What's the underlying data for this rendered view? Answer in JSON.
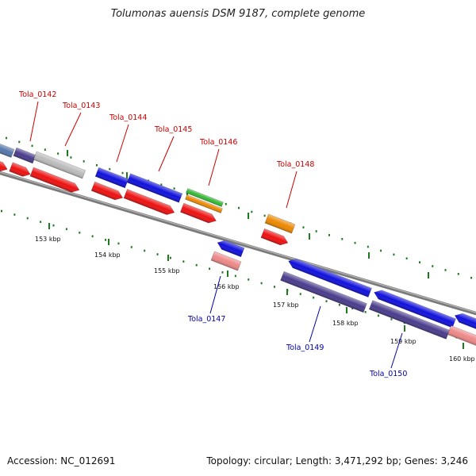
{
  "title": "Tolumonas auensis DSM 9187, complete genome",
  "footer": {
    "accession": "Accession: NC_012691",
    "topology": "Topology: circular; Length: 3,471,292 bp; Genes: 3,246"
  },
  "colors": {
    "backbone": "#7a7a7a",
    "tick": "#1f7a1f",
    "forward_label": "#cc0000",
    "reverse_label": "#0000aa"
  },
  "scale": {
    "unit": "kbp",
    "ticks": [
      "153 kbp",
      "154 kbp",
      "155 kbp",
      "156 kbp",
      "157 kbp",
      "158 kbp",
      "159 kbp",
      "160 kbp"
    ]
  },
  "genes": [
    {
      "name": "Tola_0142",
      "strand": "forward",
      "color": "#4a3c8c"
    },
    {
      "name": "Tola_0143",
      "strand": "forward",
      "color": "#bbbbbb"
    },
    {
      "name": "Tola_0144",
      "strand": "forward",
      "color": "#1010dd"
    },
    {
      "name": "Tola_0145",
      "strand": "forward",
      "color": "#1010dd"
    },
    {
      "name": "Tola_0146",
      "strand": "forward",
      "color": "#33bb33"
    },
    {
      "name": "Tola_0148",
      "strand": "forward",
      "color": "#ee8800"
    },
    {
      "name": "Tola_0147",
      "strand": "reverse",
      "color": "#1010dd"
    },
    {
      "name": "Tola_0149",
      "strand": "reverse",
      "color": "#1010dd"
    },
    {
      "name": "Tola_0150",
      "strand": "reverse",
      "color": "#1010dd"
    }
  ]
}
